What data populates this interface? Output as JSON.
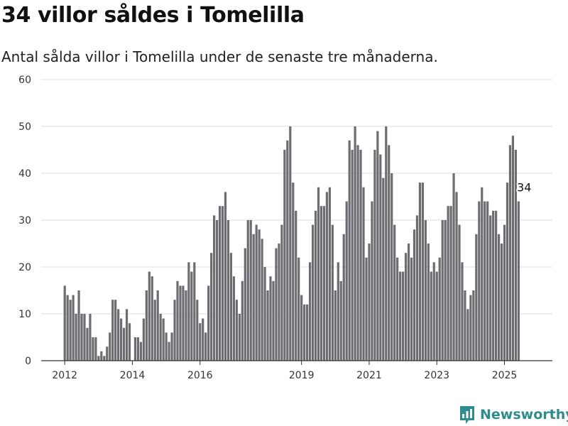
{
  "header": {
    "title": "34 villor såldes i Tomelilla",
    "subtitle": "Antal sålda villor i Tomelilla under de senaste tre månaderna."
  },
  "brand": {
    "name": "Newsworthy",
    "icon": "bar-chart-logo-icon",
    "color": "#2e8c8a"
  },
  "chart_data": {
    "type": "bar",
    "title": "34 villor såldes i Tomelilla",
    "subtitle": "Antal sålda villor i Tomelilla under de senaste tre månaderna.",
    "xlabel": "",
    "ylabel": "",
    "ylim": [
      0,
      60
    ],
    "yticks": [
      0,
      10,
      20,
      30,
      40,
      50,
      60
    ],
    "xticks": [
      "2012",
      "2014",
      "2016",
      "2019",
      "2021",
      "2023",
      "2025"
    ],
    "grid": true,
    "legend": "none",
    "colors": {
      "bar": "#6d6c71",
      "highlight": "#25938f",
      "grid": "#dddddd"
    },
    "start": "2012-01",
    "values": [
      16,
      14,
      13,
      14,
      10,
      15,
      10,
      10,
      7,
      10,
      5,
      5,
      1,
      2,
      1,
      3,
      6,
      13,
      13,
      11,
      9,
      7,
      11,
      8,
      0,
      5,
      5,
      4,
      9,
      15,
      19,
      18,
      13,
      15,
      10,
      9,
      6,
      4,
      6,
      13,
      17,
      16,
      16,
      15,
      21,
      19,
      21,
      13,
      8,
      9,
      6,
      16,
      23,
      31,
      30,
      33,
      33,
      36,
      30,
      23,
      18,
      13,
      10,
      17,
      24,
      30,
      30,
      27,
      29,
      28,
      26,
      20,
      15,
      18,
      17,
      24,
      25,
      29,
      45,
      47,
      50,
      38,
      32,
      22,
      14,
      12,
      12,
      21,
      29,
      32,
      37,
      33,
      33,
      36,
      37,
      29,
      15,
      21,
      17,
      27,
      34,
      47,
      45,
      50,
      46,
      45,
      37,
      22,
      25,
      34,
      45,
      49,
      44,
      39,
      50,
      46,
      40,
      29,
      22,
      19,
      19,
      23,
      25,
      22,
      28,
      31,
      38,
      38,
      30,
      25,
      19,
      21,
      19,
      22,
      30,
      30,
      33,
      33,
      40,
      36,
      29,
      21,
      15,
      11,
      14,
      15,
      27,
      34,
      37,
      34,
      34,
      31,
      32,
      32,
      27,
      25,
      29,
      38,
      46,
      48,
      45,
      34
    ],
    "highlight": {
      "index": 163,
      "value": 34,
      "label": "34"
    }
  }
}
